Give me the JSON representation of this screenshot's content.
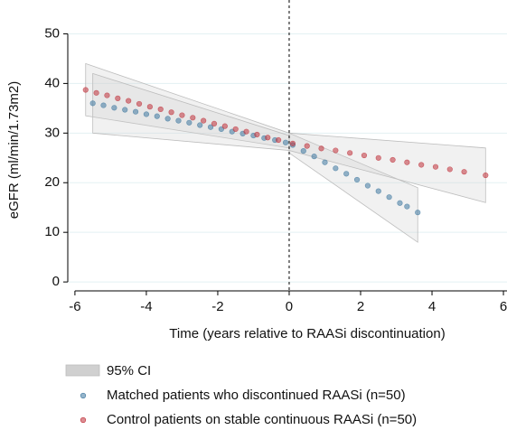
{
  "chart_data": {
    "type": "scatter",
    "xlabel": "Time (years relative to RAASi discontinuation)",
    "ylabel": "eGFR (ml/min/1.73m2)",
    "xlim": [
      -6.2,
      6.1
    ],
    "xticks": [
      -6,
      -4,
      -2,
      0,
      2,
      4,
      6
    ],
    "ylim": [
      -1.8,
      55
    ],
    "yticks": [
      0,
      10,
      20,
      30,
      40,
      50
    ],
    "grid": true,
    "vline": 0,
    "ci_label": "95% CI",
    "ci_color": "#d0d0d0",
    "ci_bands": [
      {
        "x": [
          -5.7,
          0
        ],
        "lower": [
          33.5,
          27
        ],
        "upper": [
          44,
          30
        ]
      },
      {
        "x": [
          -5.5,
          0
        ],
        "lower": [
          30,
          26.5
        ],
        "upper": [
          42,
          29.5
        ]
      },
      {
        "x": [
          0,
          3.6
        ],
        "lower": [
          26,
          8
        ],
        "upper": [
          30,
          19
        ]
      },
      {
        "x": [
          0,
          5.5
        ],
        "lower": [
          26.5,
          16
        ],
        "upper": [
          30,
          27
        ]
      }
    ],
    "series": [
      {
        "name": "Matched patients who discontinued RAASi (n=50)",
        "color": "#3f79a0",
        "x": [
          -5.5,
          -5.2,
          -4.9,
          -4.6,
          -4.3,
          -4.0,
          -3.7,
          -3.4,
          -3.1,
          -2.8,
          -2.5,
          -2.2,
          -1.9,
          -1.6,
          -1.3,
          -1.0,
          -0.7,
          -0.4,
          -0.1,
          0.1,
          0.4,
          0.7,
          1.0,
          1.3,
          1.6,
          1.9,
          2.2,
          2.5,
          2.8,
          3.1,
          3.3,
          3.6
        ],
        "values": [
          36.0,
          35.6,
          35.1,
          34.7,
          34.3,
          33.8,
          33.4,
          32.9,
          32.5,
          32.1,
          31.6,
          31.2,
          30.8,
          30.3,
          29.9,
          29.5,
          29.0,
          28.6,
          28.1,
          27.6,
          26.4,
          25.3,
          24.1,
          22.9,
          21.8,
          20.6,
          19.4,
          18.3,
          17.1,
          15.9,
          15.2,
          14.0
        ]
      },
      {
        "name": "Control patients on stable continuous RAASi (n=50)",
        "color": "#c0313a",
        "x": [
          -5.7,
          -5.4,
          -5.1,
          -4.8,
          -4.5,
          -4.2,
          -3.9,
          -3.6,
          -3.3,
          -3.0,
          -2.7,
          -2.4,
          -2.1,
          -1.8,
          -1.5,
          -1.2,
          -0.9,
          -0.6,
          -0.3,
          0.1,
          0.5,
          0.9,
          1.3,
          1.7,
          2.1,
          2.5,
          2.9,
          3.3,
          3.7,
          4.1,
          4.5,
          4.9,
          5.5
        ],
        "values": [
          38.7,
          38.1,
          37.6,
          37.0,
          36.5,
          35.9,
          35.3,
          34.8,
          34.2,
          33.6,
          33.1,
          32.5,
          31.9,
          31.4,
          30.8,
          30.3,
          29.7,
          29.1,
          28.6,
          27.9,
          27.4,
          26.9,
          26.5,
          26.0,
          25.5,
          25.0,
          24.6,
          24.1,
          23.6,
          23.2,
          22.7,
          22.2,
          21.5
        ]
      }
    ]
  }
}
